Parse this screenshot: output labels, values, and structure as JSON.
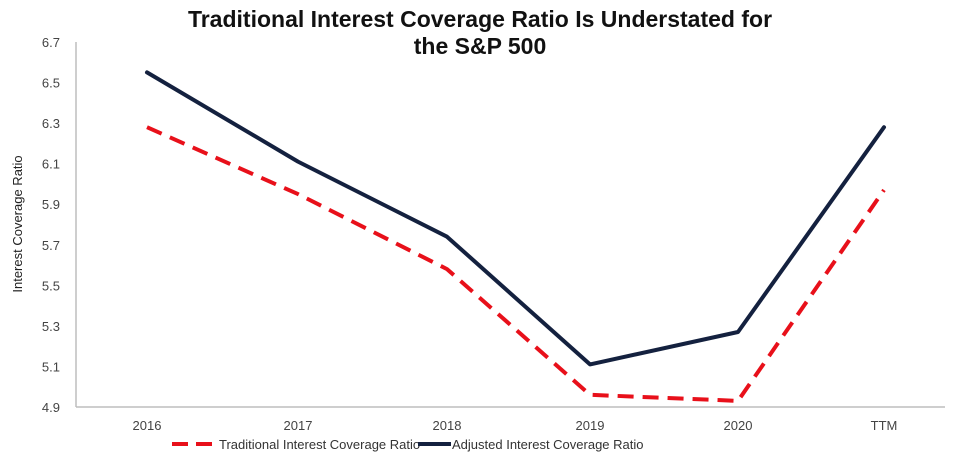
{
  "chart_data": {
    "type": "line",
    "title": "Traditional Interest Coverage Ratio Is Understated for the S&P 500",
    "title_lines": [
      "Traditional Interest Coverage Ratio Is Understated for",
      "the S&P 500"
    ],
    "xlabel": "",
    "ylabel": "Interest Coverage Ratio",
    "categories": [
      "2016",
      "2017",
      "2018",
      "2019",
      "2020",
      "TTM"
    ],
    "ylim": [
      4.9,
      6.7
    ],
    "yticks": [
      "6.7",
      "6.5",
      "6.3",
      "6.1",
      "5.9",
      "5.7",
      "5.5",
      "5.3",
      "5.1",
      "4.9"
    ],
    "grid": false,
    "legend_position": "bottom",
    "series": [
      {
        "name": "Traditional Interest Coverage Ratio",
        "color": "#e8101a",
        "style": "dashed",
        "values": [
          6.28,
          5.95,
          5.58,
          4.96,
          4.93,
          5.97
        ]
      },
      {
        "name": "Adjusted Interest Coverage Ratio",
        "color": "#14213f",
        "style": "solid",
        "values": [
          6.55,
          6.11,
          5.74,
          5.11,
          5.27,
          6.28
        ]
      }
    ]
  }
}
